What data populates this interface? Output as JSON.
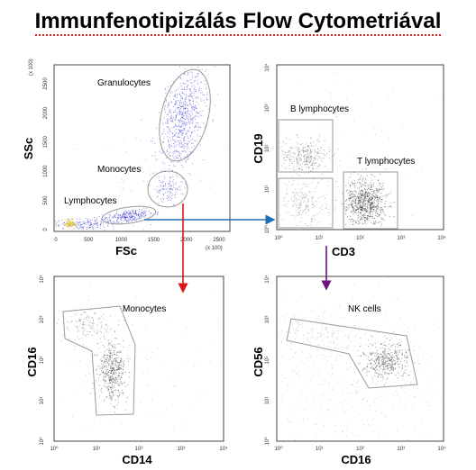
{
  "title": "Immunfenotipizálás Flow Cytometriával",
  "panels": {
    "scatter": {
      "xlabel": "FSc",
      "ylabel": "SSc",
      "x_ticks": [
        "0",
        "500",
        "1000",
        "1500",
        "2000",
        "2500"
      ],
      "y_ticks": [
        "0",
        "500",
        "1000",
        "1500",
        "2000",
        "2500"
      ],
      "x_unit": "(x 100)",
      "y_unit": "(x 100)",
      "labels": {
        "granulocytes": "Granulocytes",
        "monocytes": "Monocytes",
        "lymphocytes": "Lymphocytes"
      }
    },
    "cd19_cd3": {
      "xlabel": "CD3",
      "ylabel": "CD19",
      "labels": {
        "b_lymphocytes": "B lymphocytes",
        "t_lymphocytes": "T lymphocytes"
      }
    },
    "cd16_cd14": {
      "xlabel": "CD14",
      "ylabel": "CD16",
      "labels": {
        "monocytes": "Monocytes"
      }
    },
    "cd56_cd16": {
      "xlabel": "CD16",
      "ylabel": "CD56",
      "labels": {
        "nk_cells": "NK cells"
      }
    }
  },
  "log_ticks": {
    "x": [
      "10⁰",
      "10¹",
      "10²",
      "10³",
      "10⁴"
    ],
    "y": [
      "10⁰",
      "10¹",
      "10²",
      "10³",
      "10⁴"
    ]
  },
  "arrow_colors": {
    "to_cd3": "#1f6fb5",
    "to_cd14": "#d81818",
    "to_cd56": "#6a1580"
  },
  "dot_colors": {
    "scatter": "#3a3ad0",
    "fluor": "#222222"
  }
}
